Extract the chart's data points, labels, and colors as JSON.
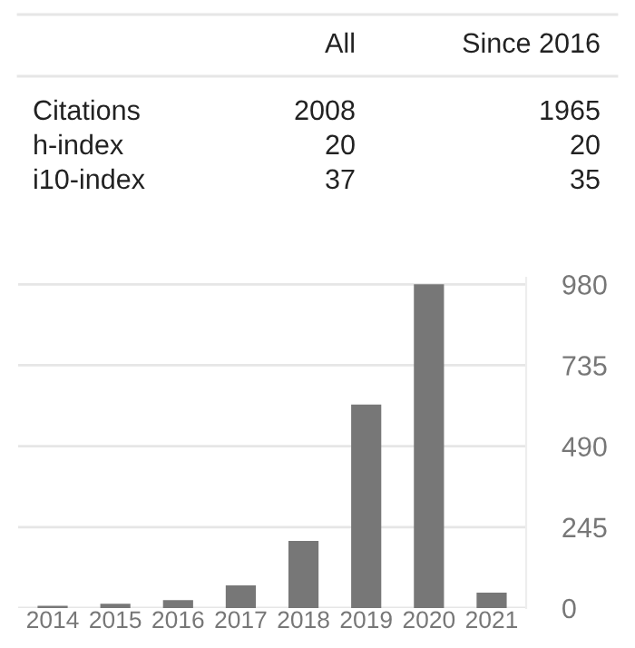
{
  "chart_data": {
    "type": "bar",
    "categories": [
      "2014",
      "2015",
      "2016",
      "2017",
      "2018",
      "2019",
      "2020",
      "2021"
    ],
    "values": [
      7,
      13,
      24,
      69,
      203,
      616,
      980,
      47
    ],
    "color": "#777777",
    "ylim": [
      0,
      1000
    ],
    "yticks": [
      0,
      245,
      490,
      735,
      980
    ],
    "grid": "y",
    "annotations": [
      "All",
      "Since 2016",
      "Citations",
      "2008",
      "1965",
      "h-index",
      "20",
      "20",
      "i10-index",
      "37",
      "35"
    ]
  }
}
